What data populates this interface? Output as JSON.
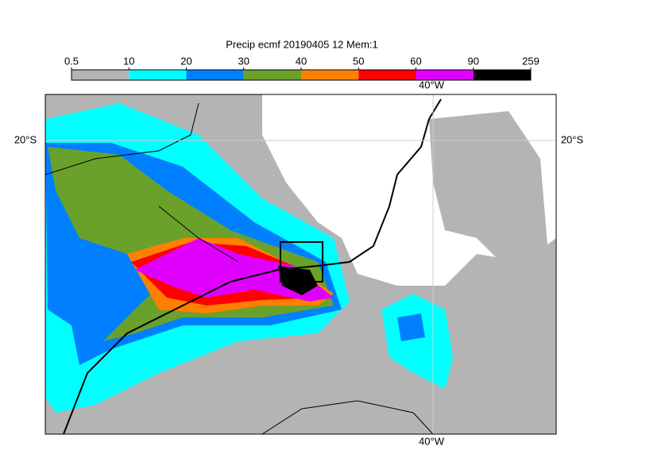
{
  "title": "Precip ecmf 20190405 12 Mem:1",
  "colorbar": {
    "ticks": [
      0.5,
      10,
      20,
      30,
      40,
      50,
      60,
      90,
      259
    ],
    "colors": [
      "#b4b4b4",
      "#00ffff",
      "#0080ff",
      "#6aa12a",
      "#ff8000",
      "#ff0000",
      "#e000ff",
      "#000000"
    ]
  },
  "labels": {
    "lon_top": "40°W",
    "lon_bottom": "40°W",
    "lat_left": "20°S",
    "lat_right": "20°S"
  }
}
